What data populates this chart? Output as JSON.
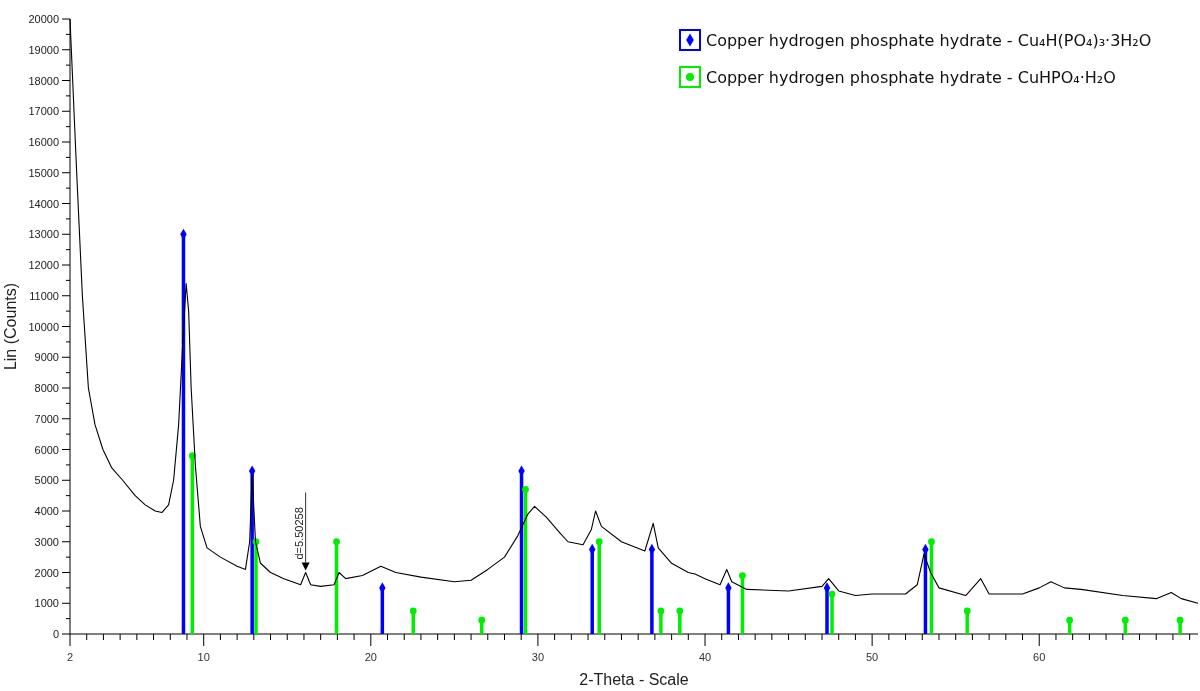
{
  "chart_data": {
    "type": "line",
    "xlabel": "2-Theta - Scale",
    "ylabel": "Lin (Counts)",
    "xlim": [
      2,
      69.5
    ],
    "ylim": [
      0,
      20000
    ],
    "xticks": [
      2,
      {
        "value": 3,
        "label": null
      },
      {
        "value": 4,
        "label": null
      },
      {
        "value": 5,
        "label": null
      },
      {
        "value": 6,
        "label": null
      },
      {
        "value": 7,
        "label": null
      },
      {
        "value": 8,
        "label": null
      },
      {
        "value": 9,
        "label": null
      },
      10,
      {
        "value": 11,
        "label": null
      },
      {
        "value": 12,
        "label": null
      },
      {
        "value": 13,
        "label": null
      },
      {
        "value": 14,
        "label": null
      },
      {
        "value": 15,
        "label": null
      },
      {
        "value": 16,
        "label": null
      },
      {
        "value": 17,
        "label": null
      },
      {
        "value": 18,
        "label": null
      },
      {
        "value": 19,
        "label": null
      },
      20,
      {
        "value": 21,
        "label": null
      },
      {
        "value": 22,
        "label": null
      },
      {
        "value": 23,
        "label": null
      },
      {
        "value": 24,
        "label": null
      },
      {
        "value": 25,
        "label": null
      },
      {
        "value": 26,
        "label": null
      },
      {
        "value": 27,
        "label": null
      },
      {
        "value": 28,
        "label": null
      },
      {
        "value": 29,
        "label": null
      },
      30,
      {
        "value": 31,
        "label": null
      },
      {
        "value": 32,
        "label": null
      },
      {
        "value": 33,
        "label": null
      },
      {
        "value": 34,
        "label": null
      },
      {
        "value": 35,
        "label": null
      },
      {
        "value": 36,
        "label": null
      },
      {
        "value": 37,
        "label": null
      },
      {
        "value": 38,
        "label": null
      },
      {
        "value": 39,
        "label": null
      },
      40,
      {
        "value": 41,
        "label": null
      },
      {
        "value": 42,
        "label": null
      },
      {
        "value": 43,
        "label": null
      },
      {
        "value": 44,
        "label": null
      },
      {
        "value": 45,
        "label": null
      },
      {
        "value": 46,
        "label": null
      },
      {
        "value": 47,
        "label": null
      },
      {
        "value": 48,
        "label": null
      },
      {
        "value": 49,
        "label": null
      },
      50,
      {
        "value": 51,
        "label": null
      },
      {
        "value": 52,
        "label": null
      },
      {
        "value": 53,
        "label": null
      },
      {
        "value": 54,
        "label": null
      },
      {
        "value": 55,
        "label": null
      },
      {
        "value": 56,
        "label": null
      },
      {
        "value": 57,
        "label": null
      },
      {
        "value": 58,
        "label": null
      },
      {
        "value": 59,
        "label": null
      },
      60,
      {
        "value": 61,
        "label": null
      },
      {
        "value": 62,
        "label": null
      },
      {
        "value": 63,
        "label": null
      },
      {
        "value": 64,
        "label": null
      },
      {
        "value": 65,
        "label": null
      },
      {
        "value": 66,
        "label": null
      },
      {
        "value": 67,
        "label": null
      },
      {
        "value": 68,
        "label": null
      },
      {
        "value": 69,
        "label": null
      }
    ],
    "yticks": [
      0,
      {
        "value": 500,
        "label": null
      },
      1000,
      {
        "value": 1500,
        "label": null
      },
      2000,
      {
        "value": 2500,
        "label": null
      },
      3000,
      {
        "value": 3500,
        "label": null
      },
      4000,
      {
        "value": 4500,
        "label": null
      },
      5000,
      {
        "value": 5500,
        "label": null
      },
      6000,
      {
        "value": 6500,
        "label": null
      },
      7000,
      {
        "value": 7500,
        "label": null
      },
      8000,
      {
        "value": 8500,
        "label": null
      },
      9000,
      {
        "value": 9500,
        "label": null
      },
      10000,
      {
        "value": 10500,
        "label": null
      },
      11000,
      {
        "value": 11500,
        "label": null
      },
      12000,
      {
        "value": 12500,
        "label": null
      },
      13000,
      {
        "value": 13500,
        "label": null
      },
      14000,
      {
        "value": 14500,
        "label": null
      },
      15000,
      {
        "value": 15500,
        "label": null
      },
      16000,
      {
        "value": 16500,
        "label": null
      },
      17000,
      {
        "value": 17500,
        "label": null
      },
      18000,
      {
        "value": 18500,
        "label": null
      },
      19000,
      {
        "value": 19500,
        "label": null
      },
      20000
    ],
    "grid": false,
    "legend": "top right",
    "series": [
      {
        "color": "#000000",
        "marker": "none",
        "line_style": "solid",
        "x": [
          2.0,
          2.4,
          2.74,
          3.1,
          3.5,
          3.97,
          4.5,
          5.15,
          5.9,
          6.5,
          7.1,
          7.5,
          7.9,
          8.2,
          8.5,
          8.75,
          8.95,
          9.1,
          9.25,
          9.5,
          9.8,
          10.2,
          11.0,
          12.0,
          12.5,
          12.75,
          12.9,
          13.1,
          13.4,
          14.0,
          14.8,
          15.8,
          16.1,
          16.4,
          17.0,
          17.8,
          18.1,
          18.5,
          19.5,
          20.6,
          21.5,
          23.0,
          25.0,
          26.0,
          27.0,
          28.0,
          28.8,
          29.4,
          29.8,
          30.5,
          31.3,
          31.8,
          32.7,
          33.2,
          33.45,
          33.8,
          35.0,
          36.4,
          36.9,
          37.2,
          38.0,
          39.0,
          39.4,
          40.0,
          40.9,
          41.3,
          41.6,
          42.5,
          45.0,
          47.0,
          47.4,
          48.0,
          49.0,
          50.0,
          52.0,
          52.7,
          53.1,
          53.5,
          54.0,
          55.6,
          56.5,
          57.0,
          59.0,
          60.0,
          60.7,
          61.5,
          62.5,
          65.0,
          67.0,
          67.9,
          68.5,
          69.5
        ],
        "values": [
          20000,
          15000,
          11000,
          8000,
          6800,
          6000,
          5400,
          5000,
          4500,
          4200,
          4000,
          3950,
          4200,
          5000,
          6800,
          9500,
          11400,
          10500,
          8000,
          5500,
          3500,
          2800,
          2500,
          2200,
          2100,
          3000,
          5200,
          3000,
          2300,
          2000,
          1800,
          1600,
          2000,
          1600,
          1550,
          1600,
          2000,
          1800,
          1900,
          2200,
          2000,
          1850,
          1700,
          1750,
          2100,
          2500,
          3200,
          3900,
          4150,
          3800,
          3300,
          3000,
          2900,
          3400,
          4000,
          3500,
          3000,
          2700,
          3600,
          2800,
          2300,
          2000,
          1950,
          1800,
          1600,
          2100,
          1700,
          1450,
          1400,
          1550,
          1800,
          1400,
          1250,
          1300,
          1300,
          1600,
          2600,
          2000,
          1500,
          1250,
          1800,
          1300,
          1300,
          1500,
          1700,
          1500,
          1450,
          1250,
          1150,
          1350,
          1150,
          1000
        ]
      },
      {
        "type": "lollipop",
        "name": "Copper hydrogen phosphate hydrate - Cu₄H(PO₄)₃·3H₂O",
        "color": "#0000ff",
        "marker": "diamond",
        "x": [
          8.79,
          12.9,
          20.69,
          29.02,
          33.25,
          36.82,
          41.4,
          47.3,
          53.19
        ],
        "values": [
          13000,
          5300,
          1500,
          5300,
          2750,
          2750,
          1500,
          1500,
          2750
        ]
      },
      {
        "type": "lollipop",
        "name": "Copper hydrogen phosphate hydrate - CuHPO₄·H₂O",
        "color": "#00ee00",
        "marker": "circle",
        "x": [
          9.32,
          13.13,
          17.95,
          22.54,
          26.64,
          29.26,
          33.67,
          37.36,
          38.49,
          42.24,
          47.6,
          53.55,
          55.69,
          61.82,
          65.15,
          68.43
        ],
        "values": [
          5800,
          3000,
          3000,
          750,
          450,
          4700,
          3000,
          750,
          750,
          1900,
          1300,
          3000,
          750,
          450,
          450,
          450
        ]
      }
    ],
    "annotations": [
      {
        "text": "d=5.50258",
        "x": 16.1,
        "y": 2000
      }
    ]
  }
}
